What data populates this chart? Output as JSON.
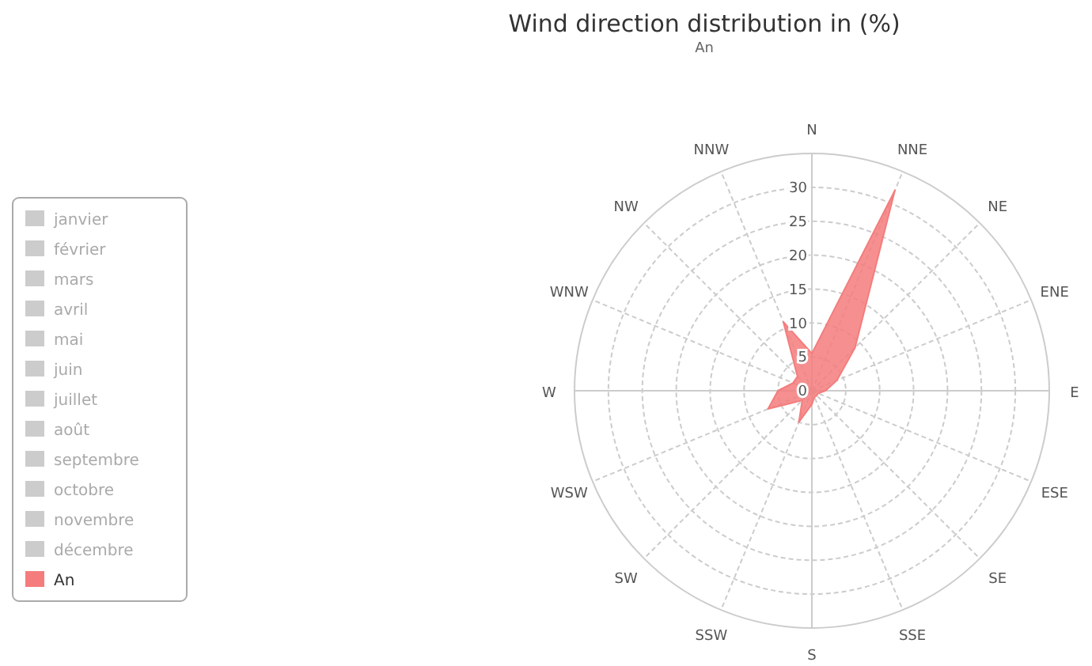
{
  "chart_data": {
    "type": "radar",
    "title": "Wind direction distribution in (%)",
    "subtitle": "An",
    "categories": [
      "N",
      "NNE",
      "NE",
      "ENE",
      "E",
      "ESE",
      "SE",
      "SSE",
      "S",
      "SSW",
      "SW",
      "WSW",
      "W",
      "WNW",
      "NW",
      "NNW"
    ],
    "series": [
      {
        "name": "An",
        "color": "#f47c7c",
        "values": [
          5.5,
          32,
          9,
          4,
          2,
          1,
          1,
          1,
          2,
          5,
          2,
          7,
          5,
          3,
          3,
          11
        ]
      }
    ],
    "annotations": [
      "janvier",
      "février",
      "mars",
      "avril",
      "mai",
      "juin",
      "juillet",
      "août",
      "septembre",
      "octobre",
      "novembre",
      "décembre"
    ],
    "ylim": [
      0,
      35
    ],
    "yticks": [
      0,
      5,
      10,
      15,
      20,
      25,
      30
    ],
    "grid": true,
    "legend": "left"
  }
}
